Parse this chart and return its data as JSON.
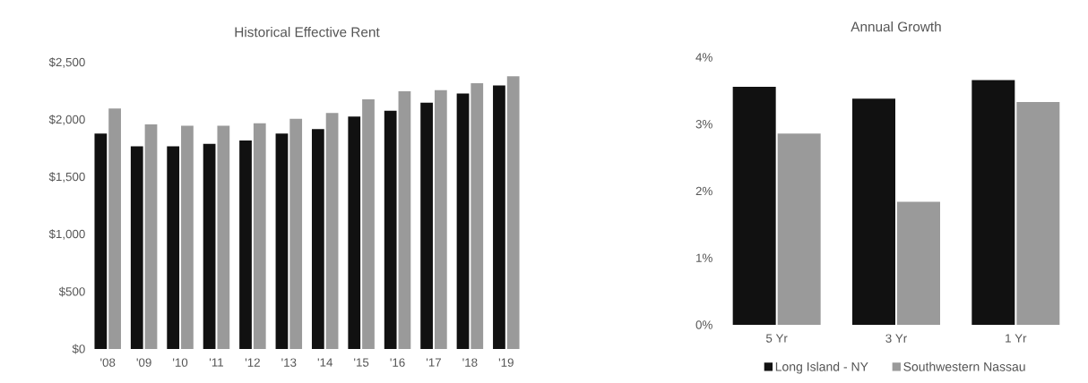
{
  "chart_data": [
    {
      "type": "bar",
      "title": "Historical Effective Rent",
      "categories": [
        "'08",
        "'09",
        "'10",
        "'11",
        "'12",
        "'13",
        "'14",
        "'15",
        "'16",
        "'17",
        "'18",
        "'19"
      ],
      "series": [
        {
          "color": "#111111",
          "values": [
            1880,
            1770,
            1770,
            1790,
            1820,
            1880,
            1920,
            2030,
            2080,
            2150,
            2230,
            2300
          ]
        },
        {
          "color": "#9a9a9a",
          "values": [
            2100,
            1960,
            1950,
            1950,
            1970,
            2010,
            2060,
            2180,
            2250,
            2260,
            2320,
            2380
          ]
        }
      ],
      "ylim": [
        0,
        2500
      ],
      "yticks": [
        {
          "value": 0,
          "label": "$0"
        },
        {
          "value": 500,
          "label": "$500"
        },
        {
          "value": 1000,
          "label": "$1,000"
        },
        {
          "value": 1500,
          "label": "$1,500"
        },
        {
          "value": 2000,
          "label": "$2,000"
        },
        {
          "value": 2500,
          "label": "$2,500"
        }
      ]
    },
    {
      "type": "bar",
      "title": "Annual Growth",
      "categories": [
        "5 Yr",
        "3 Yr",
        "1 Yr"
      ],
      "series": [
        {
          "name": "Long Island - NY",
          "color": "#111111",
          "values": [
            3.56,
            3.38,
            3.66
          ]
        },
        {
          "name": "Southwestern Nassau",
          "color": "#9a9a9a",
          "values": [
            2.86,
            1.84,
            3.33
          ]
        }
      ],
      "ylim": [
        0,
        4
      ],
      "yticks": [
        {
          "value": 0,
          "label": "0%"
        },
        {
          "value": 1,
          "label": "1%"
        },
        {
          "value": 2,
          "label": "2%"
        },
        {
          "value": 3,
          "label": "3%"
        },
        {
          "value": 4,
          "label": "4%"
        }
      ],
      "legend": "bottom"
    }
  ]
}
